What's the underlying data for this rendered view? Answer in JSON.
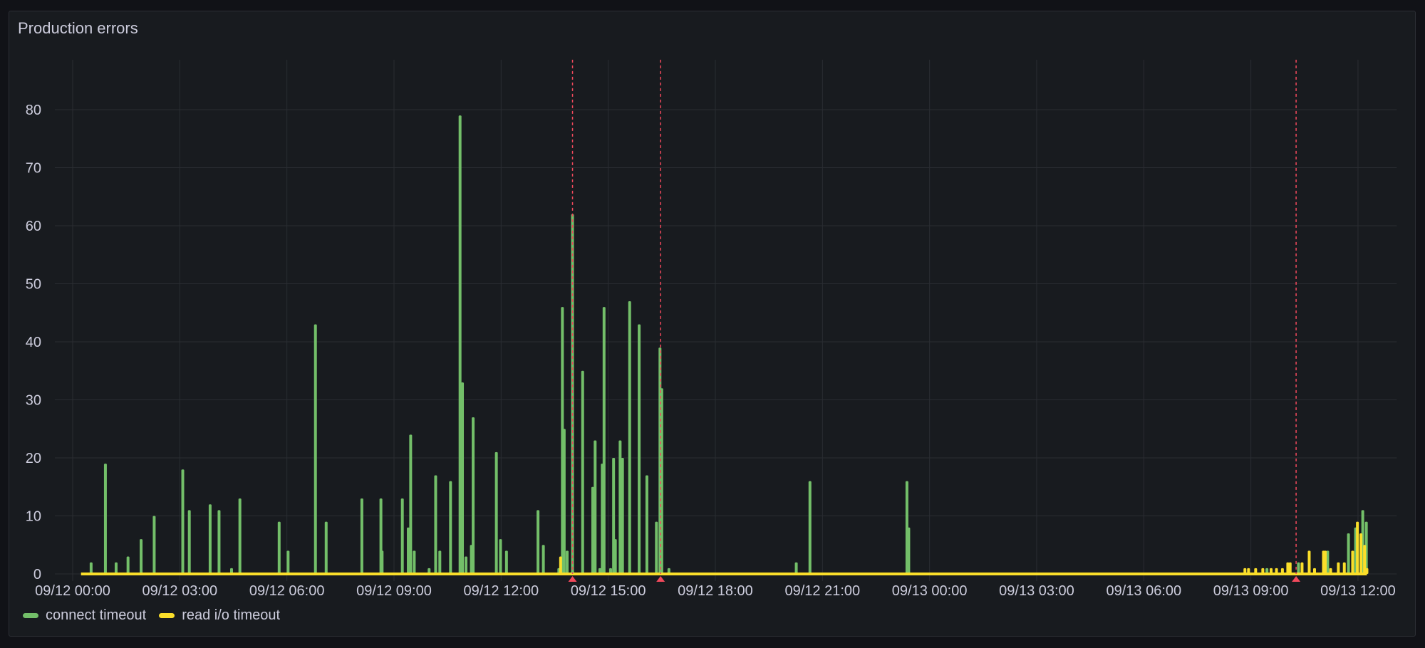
{
  "panel": {
    "title": "Production errors"
  },
  "chart_data": {
    "type": "bar",
    "title": "Production errors",
    "xlabel": "",
    "ylabel": "",
    "xlim": [
      "09/11 23:30",
      "09/13 13:05"
    ],
    "ylim": [
      0,
      88.6
    ],
    "y_ticks": [
      "0",
      "10",
      "20",
      "30",
      "40",
      "50",
      "60",
      "70",
      "80"
    ],
    "x_ticks": [
      "09/12 00:00",
      "09/12 03:00",
      "09/12 06:00",
      "09/12 09:00",
      "09/12 12:00",
      "09/12 15:00",
      "09/12 18:00",
      "09/12 21:00",
      "09/13 00:00",
      "09/13 03:00",
      "09/13 06:00",
      "09/13 09:00",
      "09/13 12:00"
    ],
    "grid": true,
    "legend": "bottom-left",
    "series": [
      {
        "name": "connect timeout",
        "color": "#73bf69",
        "points": [
          [
            "09/12 00:31",
            2
          ],
          [
            "09/12 00:55",
            19
          ],
          [
            "09/12 01:13",
            2
          ],
          [
            "09/12 01:33",
            3
          ],
          [
            "09/12 01:55",
            6
          ],
          [
            "09/12 02:17",
            10
          ],
          [
            "09/12 03:05",
            18
          ],
          [
            "09/12 03:16",
            11
          ],
          [
            "09/12 03:51",
            12
          ],
          [
            "09/12 04:06",
            11
          ],
          [
            "09/12 04:27",
            1
          ],
          [
            "09/12 04:41",
            13
          ],
          [
            "09/12 05:47",
            9
          ],
          [
            "09/12 06:02",
            4
          ],
          [
            "09/12 06:48",
            43
          ],
          [
            "09/12 07:06",
            9
          ],
          [
            "09/12 08:06",
            13
          ],
          [
            "09/12 08:38",
            13
          ],
          [
            "09/12 08:40",
            4
          ],
          [
            "09/12 09:14",
            13
          ],
          [
            "09/12 09:24",
            8
          ],
          [
            "09/12 09:28",
            24
          ],
          [
            "09/12 09:34",
            4
          ],
          [
            "09/12 09:59",
            1
          ],
          [
            "09/12 10:10",
            17
          ],
          [
            "09/12 10:17",
            4
          ],
          [
            "09/12 10:35",
            16
          ],
          [
            "09/12 10:51",
            79
          ],
          [
            "09/12 10:55",
            33
          ],
          [
            "09/12 11:01",
            3
          ],
          [
            "09/12 11:10",
            5
          ],
          [
            "09/12 11:13",
            27
          ],
          [
            "09/12 11:52",
            21
          ],
          [
            "09/12 11:59",
            6
          ],
          [
            "09/12 12:09",
            4
          ],
          [
            "09/12 13:02",
            11
          ],
          [
            "09/12 13:11",
            5
          ],
          [
            "09/12 13:37",
            1
          ],
          [
            "09/12 13:43",
            46
          ],
          [
            "09/12 13:46",
            25
          ],
          [
            "09/12 13:51",
            4
          ],
          [
            "09/12 14:00",
            62
          ],
          [
            "09/12 14:17",
            35
          ],
          [
            "09/12 14:34",
            15
          ],
          [
            "09/12 14:38",
            23
          ],
          [
            "09/12 14:46",
            1
          ],
          [
            "09/12 14:50",
            19
          ],
          [
            "09/12 14:53",
            46
          ],
          [
            "09/12 15:04",
            1
          ],
          [
            "09/12 15:09",
            20
          ],
          [
            "09/12 15:12",
            6
          ],
          [
            "09/12 15:20",
            23
          ],
          [
            "09/12 15:24",
            20
          ],
          [
            "09/12 15:36",
            47
          ],
          [
            "09/12 15:52",
            43
          ],
          [
            "09/12 16:05",
            17
          ],
          [
            "09/12 16:21",
            9
          ],
          [
            "09/12 16:27",
            39
          ],
          [
            "09/12 16:30",
            32
          ],
          [
            "09/12 16:42",
            1
          ],
          [
            "09/12 20:16",
            2
          ],
          [
            "09/12 20:39",
            16
          ],
          [
            "09/12 23:22",
            16
          ],
          [
            "09/12 23:25",
            8
          ],
          [
            "09/13 09:27",
            1
          ],
          [
            "09/13 10:20",
            2
          ],
          [
            "09/13 11:09",
            4
          ],
          [
            "09/13 11:44",
            7
          ],
          [
            "09/13 11:56",
            8
          ],
          [
            "09/13 12:08",
            11
          ],
          [
            "09/13 12:14",
            9
          ]
        ]
      },
      {
        "name": "read i/o timeout",
        "color": "#fade2a",
        "points": [
          [
            "09/12 13:40",
            3
          ],
          [
            "09/13 08:50",
            1
          ],
          [
            "09/13 08:56",
            1
          ],
          [
            "09/13 09:08",
            1
          ],
          [
            "09/13 09:20",
            1
          ],
          [
            "09/13 09:34",
            1
          ],
          [
            "09/13 09:43",
            1
          ],
          [
            "09/13 09:53",
            1
          ],
          [
            "09/13 10:02",
            2
          ],
          [
            "09/13 10:06",
            2
          ],
          [
            "09/13 10:26",
            2
          ],
          [
            "09/13 10:38",
            4
          ],
          [
            "09/13 10:47",
            1
          ],
          [
            "09/13 11:02",
            4
          ],
          [
            "09/13 11:05",
            4
          ],
          [
            "09/13 11:14",
            1
          ],
          [
            "09/13 11:27",
            2
          ],
          [
            "09/13 11:37",
            2
          ],
          [
            "09/13 11:51",
            4
          ],
          [
            "09/13 11:59",
            9
          ],
          [
            "09/13 12:05",
            7
          ],
          [
            "09/13 12:11",
            5
          ],
          [
            "09/13 12:15",
            1
          ]
        ]
      }
    ],
    "zero_line": {
      "series": "read i/o timeout",
      "from": "09/12 00:14",
      "to": "09/13 12:15"
    },
    "annotations": {
      "color": "#f2495c",
      "times": [
        "09/12 14:00",
        "09/12 16:28",
        "09/13 10:16"
      ]
    }
  }
}
